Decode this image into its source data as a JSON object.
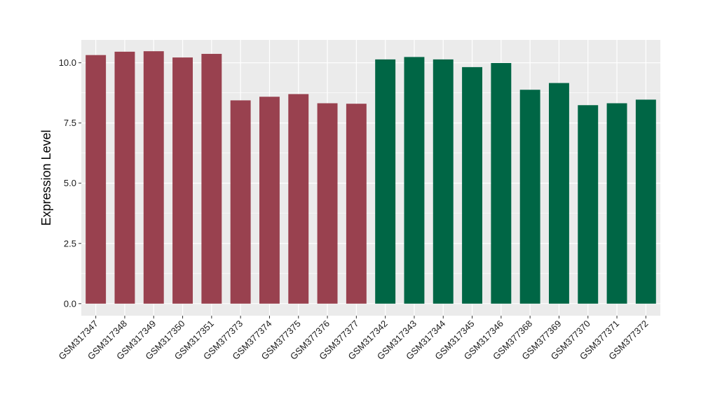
{
  "chart_data": {
    "type": "bar",
    "title": "",
    "xlabel": "",
    "ylabel": "Expression Level",
    "ylim": [
      -0.5,
      10.95
    ],
    "yticks": [
      0.0,
      2.5,
      5.0,
      7.5,
      10.0
    ],
    "ytick_labels": [
      "0.0",
      "2.5",
      "5.0",
      "7.5",
      "10.0"
    ],
    "grid": true,
    "legend": "none",
    "categories": [
      "GSM317347",
      "GSM317348",
      "GSM317349",
      "GSM317350",
      "GSM317351",
      "GSM377373",
      "GSM377374",
      "GSM377375",
      "GSM377376",
      "GSM377377",
      "GSM317342",
      "GSM317343",
      "GSM317344",
      "GSM317345",
      "GSM317346",
      "GSM377368",
      "GSM377369",
      "GSM377370",
      "GSM377371",
      "GSM377372"
    ],
    "values": [
      10.32,
      10.46,
      10.48,
      10.22,
      10.37,
      8.44,
      8.59,
      8.7,
      8.32,
      8.3,
      10.14,
      10.24,
      10.14,
      9.82,
      9.99,
      8.88,
      9.16,
      8.24,
      8.32,
      8.47
    ],
    "group_colors": [
      "#99414f",
      "#99414f",
      "#99414f",
      "#99414f",
      "#99414f",
      "#99414f",
      "#99414f",
      "#99414f",
      "#99414f",
      "#99414f",
      "#006645",
      "#006645",
      "#006645",
      "#006645",
      "#006645",
      "#006645",
      "#006645",
      "#006645",
      "#006645",
      "#006645"
    ],
    "panel_background": "#ebebeb",
    "grid_color": "#ffffff"
  }
}
